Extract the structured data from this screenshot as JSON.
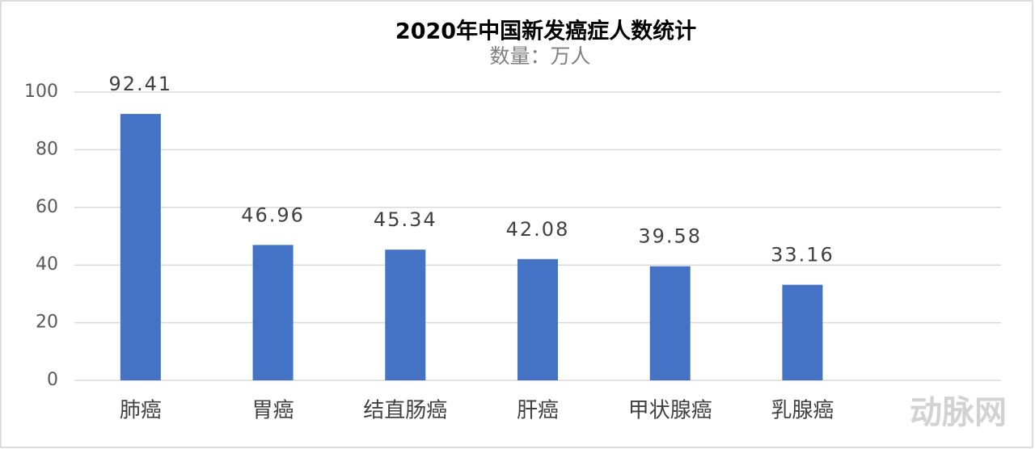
{
  "chart_data": {
    "type": "bar",
    "title": "2020年中国新发癌症人数统计",
    "subtitle": "数量：万人",
    "categories": [
      "肺癌",
      "胃癌",
      "结直肠癌",
      "肝癌",
      "甲状腺癌",
      "乳腺癌",
      null
    ],
    "values": [
      92.41,
      46.96,
      45.34,
      42.08,
      39.58,
      33.16,
      null
    ],
    "color": "#4472c4",
    "ylim": [
      0,
      100
    ],
    "yticks": [
      0,
      20,
      40,
      60,
      80,
      100
    ],
    "grid": true,
    "watermark": "动脉网"
  }
}
